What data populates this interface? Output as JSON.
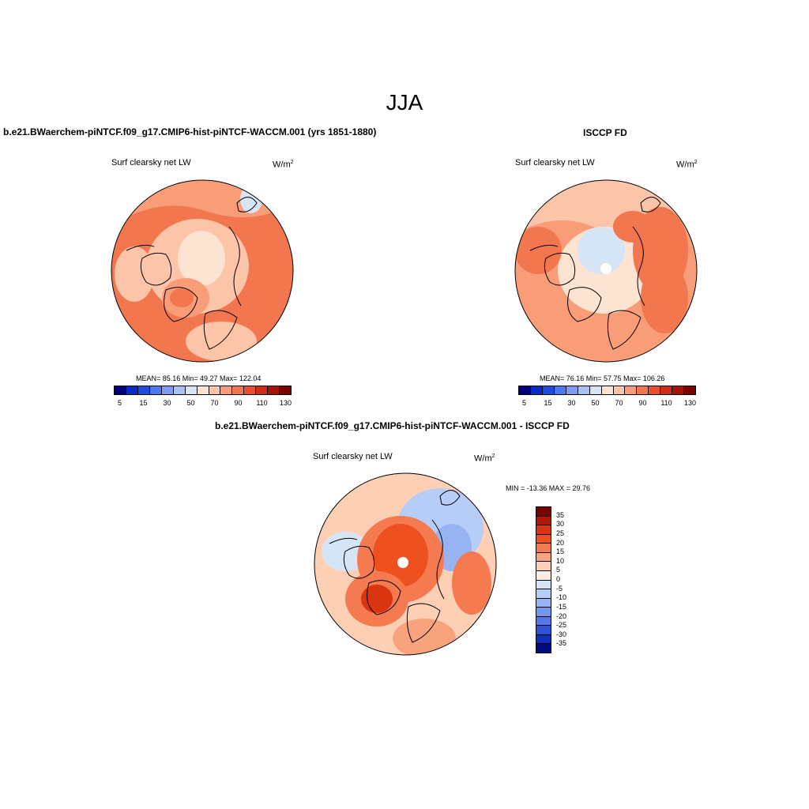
{
  "title": "JJA",
  "left_panel": {
    "title": "b.e21.BWaerchem-piNTCF.f09_g17.CMIP6-hist-piNTCF-WACCM.001 (yrs 1851-1880)",
    "variable_label": "Surf clearsky net LW",
    "units_base": "W/m",
    "units_exp": "2",
    "stats": "MEAN=  85.16  Min=  49.27  Max= 122.04",
    "colorbar_ticks": [
      "5",
      "15",
      "30",
      "50",
      "70",
      "90",
      "110",
      "130"
    ]
  },
  "right_panel": {
    "title": "ISCCP FD",
    "variable_label": "Surf clearsky net LW",
    "units_base": "W/m",
    "units_exp": "2",
    "stats": "MEAN=  76.16  Min=  57.75  Max= 106.26",
    "colorbar_ticks": [
      "5",
      "15",
      "30",
      "50",
      "70",
      "90",
      "110",
      "130"
    ]
  },
  "diff_panel": {
    "title": "b.e21.BWaerchem-piNTCF.f09_g17.CMIP6-hist-piNTCF-WACCM.001 - ISCCP FD",
    "variable_label": "Surf clearsky net LW",
    "units_base": "W/m",
    "units_exp": "2",
    "minmax": "MIN = -13.36 MAX =  29.76",
    "colorbar_ticks": [
      "35",
      "30",
      "25",
      "20",
      "15",
      "10",
      "5",
      "0",
      "-5",
      "-10",
      "-15",
      "-20",
      "-25",
      "-30",
      "-35"
    ]
  },
  "colors": {
    "abs_scale": [
      "#00007f",
      "#0a2bbf",
      "#1c4fe0",
      "#4a78f0",
      "#7d9cf3",
      "#aac1f6",
      "#d5e5f6",
      "#fde4d2",
      "#fcc4a8",
      "#f89d78",
      "#f2764e",
      "#e84f2c",
      "#cf2e13",
      "#a81307",
      "#7a0000"
    ],
    "diff_scale": [
      "#7a0000",
      "#b01808",
      "#d9350f",
      "#ee5020",
      "#f57a50",
      "#f9a27e",
      "#fdd0b6",
      "#fdeee3",
      "#d5e5f6",
      "#b6cdf7",
      "#97b3f2",
      "#7697ee",
      "#5478e8",
      "#2d52d6",
      "#1230b5",
      "#000d80"
    ],
    "land_outline": "#000000"
  }
}
